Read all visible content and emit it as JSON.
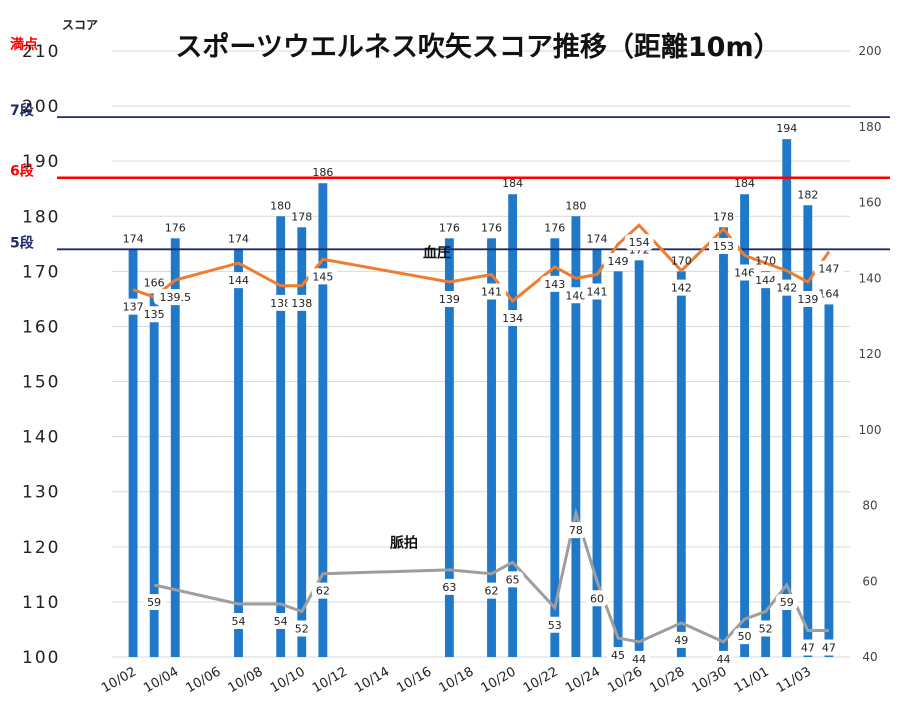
{
  "chart_data": {
    "type": "bar",
    "title": "スポーツウエルネス吹矢スコア推移（距離10m）",
    "ylabel": "スコア",
    "ylim": [
      100,
      210
    ],
    "y2lim": [
      40,
      200
    ],
    "xlim": [
      "2023-10-01",
      "2023-11-05"
    ],
    "x_ticks": [
      "10/02",
      "10/04",
      "10/06",
      "10/08",
      "10/10",
      "10/12",
      "10/14",
      "10/16",
      "10/18",
      "10/20",
      "10/22",
      "10/24",
      "10/26",
      "10/28",
      "10/30",
      "11/01",
      "11/03"
    ],
    "y_ticks": [
      100,
      110,
      120,
      130,
      140,
      150,
      160,
      170,
      180,
      190,
      200,
      210
    ],
    "y2_ticks": [
      40,
      60,
      80,
      100,
      120,
      140,
      160,
      180,
      200
    ],
    "grid": true,
    "reference_lines": [
      {
        "label": "満点",
        "value": 210,
        "color": "#ff0000"
      },
      {
        "label": "7段",
        "value": 198,
        "color": "#1f2a6b"
      },
      {
        "label": "6段",
        "value": 187,
        "color": "#ff0000"
      },
      {
        "label": "5段",
        "value": 174,
        "color": "#1f2a6b"
      }
    ],
    "series": [
      {
        "kind": "bar",
        "axis": "left",
        "color": "#1f78c8",
        "points": [
          {
            "x": "2023-10-02",
            "y": 174
          },
          {
            "x": "2023-10-03",
            "y": 166
          },
          {
            "x": "2023-10-04",
            "y": 176
          },
          {
            "x": "2023-10-07",
            "y": 174
          },
          {
            "x": "2023-10-09",
            "y": 180
          },
          {
            "x": "2023-10-10",
            "y": 178
          },
          {
            "x": "2023-10-11",
            "y": 186
          },
          {
            "x": "2023-10-17",
            "y": 176
          },
          {
            "x": "2023-10-19",
            "y": 176
          },
          {
            "x": "2023-10-20",
            "y": 184
          },
          {
            "x": "2023-10-22",
            "y": 176
          },
          {
            "x": "2023-10-23",
            "y": 180
          },
          {
            "x": "2023-10-24",
            "y": 174
          },
          {
            "x": "2023-10-25",
            "y": 170
          },
          {
            "x": "2023-10-26",
            "y": 172
          },
          {
            "x": "2023-10-28",
            "y": 170
          },
          {
            "x": "2023-10-30",
            "y": 178
          },
          {
            "x": "2023-10-31",
            "y": 184
          },
          {
            "x": "2023-11-01",
            "y": 170
          },
          {
            "x": "2023-11-02",
            "y": 194
          },
          {
            "x": "2023-11-03",
            "y": 182
          },
          {
            "x": "2023-11-04",
            "y": 164
          }
        ]
      },
      {
        "kind": "line",
        "name": "血圧",
        "axis": "right",
        "color": "#ed7d31",
        "points": [
          {
            "x": "2023-10-02",
            "y": 137
          },
          {
            "x": "2023-10-03",
            "y": 135
          },
          {
            "x": "2023-10-04",
            "y": 139.5
          },
          {
            "x": "2023-10-07",
            "y": 144
          },
          {
            "x": "2023-10-09",
            "y": 138
          },
          {
            "x": "2023-10-10",
            "y": 138
          },
          {
            "x": "2023-10-11",
            "y": 145
          },
          {
            "x": "2023-10-17",
            "y": 139
          },
          {
            "x": "2023-10-19",
            "y": 141
          },
          {
            "x": "2023-10-20",
            "y": 134
          },
          {
            "x": "2023-10-22",
            "y": 143
          },
          {
            "x": "2023-10-23",
            "y": 140
          },
          {
            "x": "2023-10-24",
            "y": 141
          },
          {
            "x": "2023-10-25",
            "y": 149
          },
          {
            "x": "2023-10-26",
            "y": 154
          },
          {
            "x": "2023-10-28",
            "y": 142
          },
          {
            "x": "2023-10-30",
            "y": 153
          },
          {
            "x": "2023-10-31",
            "y": 146
          },
          {
            "x": "2023-11-01",
            "y": 144
          },
          {
            "x": "2023-11-02",
            "y": 142
          },
          {
            "x": "2023-11-03",
            "y": 139
          },
          {
            "x": "2023-11-04",
            "y": 147
          }
        ]
      },
      {
        "kind": "line",
        "name": "脈拍",
        "axis": "right",
        "color": "#9e9e9e",
        "points": [
          {
            "x": "2023-10-03",
            "y": 59
          },
          {
            "x": "2023-10-07",
            "y": 54
          },
          {
            "x": "2023-10-09",
            "y": 54
          },
          {
            "x": "2023-10-10",
            "y": 52
          },
          {
            "x": "2023-10-11",
            "y": 62
          },
          {
            "x": "2023-10-17",
            "y": 63
          },
          {
            "x": "2023-10-19",
            "y": 62
          },
          {
            "x": "2023-10-20",
            "y": 65
          },
          {
            "x": "2023-10-22",
            "y": 53
          },
          {
            "x": "2023-10-23",
            "y": 78
          },
          {
            "x": "2023-10-24",
            "y": 60
          },
          {
            "x": "2023-10-25",
            "y": 45
          },
          {
            "x": "2023-10-26",
            "y": 44
          },
          {
            "x": "2023-10-28",
            "y": 49
          },
          {
            "x": "2023-10-30",
            "y": 44
          },
          {
            "x": "2023-10-31",
            "y": 50
          },
          {
            "x": "2023-11-01",
            "y": 52
          },
          {
            "x": "2023-11-02",
            "y": 59
          },
          {
            "x": "2023-11-03",
            "y": 47
          },
          {
            "x": "2023-11-04",
            "y": 47
          }
        ]
      }
    ]
  }
}
